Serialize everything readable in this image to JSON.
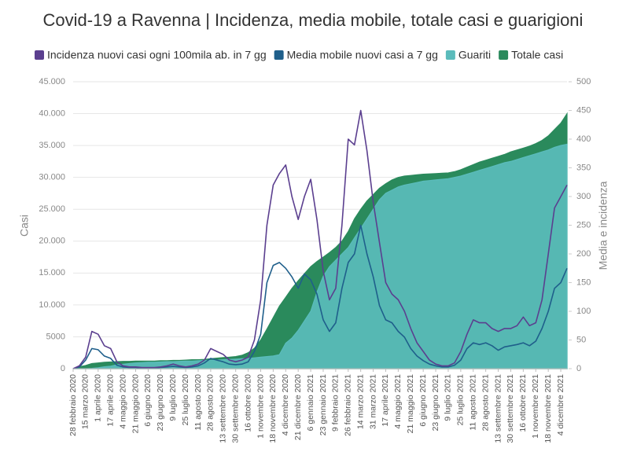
{
  "chart_data": {
    "type": "area_line",
    "title": "Covid-19 a Ravenna | Incidenza, media mobile, totale casi e guarigioni",
    "ylabel": "Casi",
    "y2label": "Media e incidenza",
    "categories": [
      "28 febbraio 2020",
      null,
      "15 marzo 2020",
      null,
      "1 aprile 2020",
      null,
      "17 aprile 2020",
      null,
      "4 maggio 2020",
      null,
      "21 maggio 2020",
      null,
      "6 giugno 2020",
      null,
      "23 giugno 2020",
      null,
      "9 luglio 2020",
      null,
      "25 luglio 2020",
      null,
      "11 agosto 2020",
      null,
      "28 agosto 2020",
      null,
      "13 settembre 2020",
      null,
      "30 settembre 2020",
      null,
      "16 ottobre 2020",
      null,
      "1 novembre 2020",
      null,
      "18 novembre 2020",
      null,
      "4 dicembre 2020",
      null,
      "21 dicembre 2020",
      null,
      "6 gennaio 2021",
      null,
      "23 gennaio 2021",
      null,
      "9 febbraio 2021",
      null,
      "26 febbraio 2021",
      null,
      "14 marzo 2021",
      null,
      "31 marzo 2021",
      null,
      "17 aprile 2021",
      null,
      "4 maggio 2021",
      null,
      "21 maggio 2021",
      null,
      "6 giugno 2021",
      null,
      "23 giugno 2021",
      null,
      "9 luglio 2021",
      null,
      "25 luglio 2021",
      null,
      "11 agosto 2021",
      null,
      "28 agosto 2021",
      null,
      "13 settembre 2021",
      null,
      "30 settembre 2021",
      null,
      "16 ottobre 2021",
      null,
      "1 novembre 2021",
      null,
      "18 novembre 2021",
      null,
      "4 dicembre 2021",
      null
    ],
    "series": [
      {
        "name": "Incidenza nuovi casi ogni 100mila ab. in 7 gg",
        "color": "#5b3f8f",
        "kind": "line",
        "axis": "y2",
        "values": [
          0,
          5,
          20,
          65,
          60,
          40,
          35,
          12,
          5,
          3,
          3,
          2,
          2,
          2,
          3,
          5,
          8,
          5,
          3,
          5,
          8,
          15,
          35,
          30,
          25,
          15,
          12,
          15,
          20,
          50,
          120,
          250,
          320,
          340,
          355,
          300,
          260,
          300,
          330,
          260,
          170,
          120,
          140,
          250,
          400,
          390,
          450,
          380,
          290,
          220,
          150,
          130,
          120,
          100,
          70,
          45,
          30,
          15,
          8,
          5,
          5,
          10,
          30,
          60,
          85,
          80,
          80,
          70,
          65,
          70,
          70,
          75,
          90,
          75,
          80,
          120,
          200,
          280,
          300,
          320
        ]
      },
      {
        "name": "Media mobile nuovi casi a 7 gg",
        "color": "#1f5f8b",
        "kind": "line",
        "axis": "y2",
        "values": [
          0,
          3,
          15,
          35,
          33,
          22,
          18,
          6,
          3,
          2,
          2,
          1,
          1,
          1,
          2,
          3,
          4,
          3,
          2,
          3,
          5,
          10,
          18,
          15,
          12,
          8,
          7,
          8,
          12,
          30,
          60,
          150,
          180,
          185,
          175,
          160,
          140,
          165,
          155,
          130,
          85,
          65,
          80,
          140,
          185,
          200,
          250,
          200,
          160,
          110,
          85,
          80,
          65,
          55,
          35,
          22,
          14,
          8,
          5,
          3,
          3,
          6,
          15,
          35,
          45,
          42,
          45,
          40,
          32,
          38,
          40,
          42,
          45,
          40,
          48,
          70,
          100,
          140,
          150,
          175
        ]
      },
      {
        "name": "Guariti",
        "color": "#5bbcbc",
        "kind": "area",
        "values": [
          0,
          0,
          0,
          50,
          150,
          300,
          400,
          600,
          700,
          800,
          900,
          950,
          1000,
          1000,
          1050,
          1100,
          1100,
          1150,
          1200,
          1200,
          1250,
          1300,
          1300,
          1350,
          1400,
          1450,
          1500,
          1550,
          1600,
          1700,
          1800,
          1900,
          2000,
          2200,
          4000,
          4800,
          6000,
          7500,
          9000,
          12000,
          14500,
          16000,
          17000,
          18000,
          19000,
          20500,
          22000,
          23500,
          25000,
          26500,
          27500,
          28000,
          28500,
          28800,
          29000,
          29200,
          29400,
          29500,
          29600,
          29700,
          29800,
          30000,
          30200,
          30500,
          30800,
          31100,
          31400,
          31700,
          32000,
          32300,
          32500,
          32800,
          33100,
          33400,
          33700,
          34000,
          34300,
          34700,
          35000,
          35200
        ]
      },
      {
        "name": "Totale casi",
        "color": "#2a8a5c",
        "kind": "area",
        "values": [
          0,
          300,
          500,
          800,
          900,
          1000,
          1050,
          1100,
          1150,
          1150,
          1200,
          1200,
          1200,
          1200,
          1250,
          1250,
          1300,
          1300,
          1350,
          1400,
          1400,
          1450,
          1550,
          1650,
          1750,
          1800,
          1900,
          2100,
          2500,
          3200,
          4500,
          6200,
          8000,
          9800,
          11200,
          12600,
          13800,
          14900,
          16000,
          16800,
          17500,
          18200,
          19000,
          20000,
          21500,
          23500,
          25000,
          26300,
          27300,
          28300,
          29000,
          29600,
          30000,
          30200,
          30300,
          30400,
          30500,
          30550,
          30600,
          30650,
          30700,
          30900,
          31200,
          31600,
          32000,
          32400,
          32700,
          33000,
          33300,
          33600,
          34000,
          34300,
          34600,
          34900,
          35300,
          35800,
          36500,
          37500,
          38500,
          40000
        ]
      }
    ],
    "ylim": [
      0,
      45000
    ],
    "yticks": [
      0,
      5000,
      {
        "value": 10000,
        "label": "10.000"
      },
      {
        "value": 15000,
        "label": "15.000"
      },
      {
        "value": 20000,
        "label": "20.000"
      },
      {
        "value": 25000,
        "label": "25.000"
      },
      {
        "value": 30000,
        "label": "30.000"
      },
      {
        "value": 35000,
        "label": "35.000"
      },
      {
        "value": 40000,
        "label": "40.000"
      },
      {
        "value": 45000,
        "label": "45.000"
      }
    ],
    "y2lim": [
      0,
      500
    ],
    "y2ticks": [
      0,
      50,
      100,
      150,
      200,
      250,
      300,
      350,
      400,
      450,
      500
    ],
    "grid": true,
    "legend": "top"
  }
}
